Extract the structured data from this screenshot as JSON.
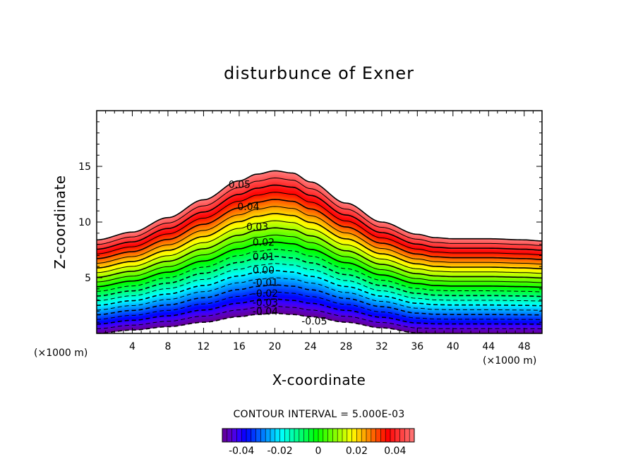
{
  "chart_data": {
    "type": "contour",
    "title": "disturbunce of Exner",
    "xlabel": "X-coordinate",
    "ylabel": "Z-coordinate",
    "x_unit": "(×1000 m)",
    "y_unit": "(×1000 m)",
    "xlim": [
      0,
      50
    ],
    "ylim": [
      0,
      20
    ],
    "x_ticks": [
      4,
      8,
      12,
      16,
      20,
      24,
      28,
      32,
      36,
      40,
      44,
      48
    ],
    "y_ticks": [
      5,
      10,
      15
    ],
    "contour_interval_text": "CONTOUR INTERVAL = 5.000E-03",
    "contour_interval": 0.005,
    "level_range": [
      -0.05,
      0.05
    ],
    "terrain": {
      "x": [
        0,
        4,
        8,
        12,
        16,
        18,
        20,
        22,
        24,
        28,
        32,
        36,
        38,
        40,
        44,
        48,
        50
      ],
      "height": [
        0.0,
        0.3,
        0.6,
        1.0,
        1.5,
        1.7,
        1.8,
        1.7,
        1.5,
        1.0,
        0.5,
        0.05,
        0.0,
        0.0,
        0.0,
        0.0,
        0.0
      ]
    },
    "upper_boundary": {
      "x": [
        0,
        4,
        8,
        12,
        16,
        18,
        20,
        22,
        24,
        28,
        32,
        36,
        38,
        40,
        44,
        48,
        50
      ],
      "height": [
        8.4,
        9.1,
        10.4,
        12.0,
        13.7,
        14.3,
        14.6,
        14.4,
        13.6,
        11.7,
        10.0,
        8.9,
        8.6,
        8.5,
        8.5,
        8.4,
        8.3
      ]
    },
    "contour_labels": [
      {
        "text": "0.05",
        "x": 14.8,
        "z": 13.4
      },
      {
        "text": "0.04",
        "x": 15.8,
        "z": 11.4
      },
      {
        "text": "0.03",
        "x": 16.8,
        "z": 9.6
      },
      {
        "text": "0.02",
        "x": 17.5,
        "z": 8.2
      },
      {
        "text": "0.01",
        "x": 17.5,
        "z": 6.9
      },
      {
        "text": "0.00",
        "x": 17.5,
        "z": 5.7
      },
      {
        "text": "-0.01",
        "x": 17.5,
        "z": 4.6
      },
      {
        "text": "-0.02",
        "x": 17.5,
        "z": 3.6
      },
      {
        "text": "-0.03",
        "x": 17.5,
        "z": 2.8
      },
      {
        "text": "-0.04",
        "x": 17.5,
        "z": 2.0
      },
      {
        "text": "-0.05",
        "x": 23.0,
        "z": 1.1
      }
    ],
    "colorbar": {
      "ticks": [
        "-0.04",
        "-0.02",
        "0",
        "0.02",
        "0.04"
      ],
      "tick_values": [
        -0.04,
        -0.02,
        0,
        0.02,
        0.04
      ],
      "range": [
        -0.05,
        0.05
      ]
    },
    "colors": {
      "frame": "#000000",
      "contour_line": "#000000",
      "background": "#ffffff"
    }
  }
}
